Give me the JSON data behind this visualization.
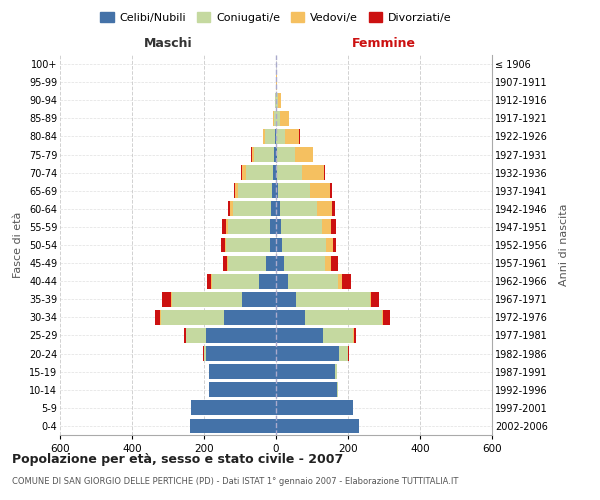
{
  "age_groups": [
    "0-4",
    "5-9",
    "10-14",
    "15-19",
    "20-24",
    "25-29",
    "30-34",
    "35-39",
    "40-44",
    "45-49",
    "50-54",
    "55-59",
    "60-64",
    "65-69",
    "70-74",
    "75-79",
    "80-84",
    "85-89",
    "90-94",
    "95-99",
    "100+"
  ],
  "birth_years": [
    "2002-2006",
    "1997-2001",
    "1992-1996",
    "1987-1991",
    "1982-1986",
    "1977-1981",
    "1972-1976",
    "1967-1971",
    "1962-1966",
    "1957-1961",
    "1952-1956",
    "1947-1951",
    "1942-1946",
    "1937-1941",
    "1932-1936",
    "1927-1931",
    "1922-1926",
    "1917-1921",
    "1912-1916",
    "1907-1911",
    "≤ 1906"
  ],
  "males": {
    "celibi": [
      240,
      235,
      185,
      185,
      195,
      195,
      145,
      95,
      48,
      28,
      18,
      18,
      14,
      10,
      8,
      5,
      2,
      0,
      0,
      0,
      0
    ],
    "coniugati": [
      0,
      0,
      0,
      2,
      5,
      55,
      175,
      195,
      130,
      105,
      120,
      115,
      105,
      95,
      75,
      55,
      28,
      6,
      3,
      1,
      0
    ],
    "vedovi": [
      0,
      0,
      0,
      0,
      0,
      1,
      1,
      2,
      3,
      3,
      5,
      5,
      8,
      10,
      12,
      8,
      5,
      3,
      1,
      0,
      0
    ],
    "divorziati": [
      0,
      0,
      0,
      0,
      2,
      5,
      15,
      25,
      12,
      10,
      10,
      12,
      5,
      3,
      2,
      2,
      0,
      0,
      0,
      0,
      0
    ]
  },
  "females": {
    "nubili": [
      230,
      215,
      170,
      165,
      175,
      130,
      80,
      55,
      32,
      22,
      18,
      14,
      10,
      5,
      3,
      2,
      0,
      0,
      0,
      0,
      0
    ],
    "coniugate": [
      0,
      0,
      2,
      5,
      25,
      85,
      215,
      205,
      140,
      115,
      120,
      115,
      105,
      90,
      70,
      50,
      25,
      12,
      5,
      1,
      0
    ],
    "vedove": [
      0,
      0,
      0,
      0,
      1,
      2,
      3,
      5,
      10,
      15,
      20,
      25,
      40,
      55,
      60,
      50,
      40,
      25,
      8,
      1,
      0
    ],
    "divorziate": [
      0,
      0,
      0,
      0,
      2,
      5,
      18,
      22,
      25,
      20,
      10,
      12,
      8,
      5,
      3,
      2,
      1,
      0,
      0,
      0,
      0
    ]
  },
  "colors": {
    "celibi": "#4472a8",
    "coniugati": "#c5d9a0",
    "vedovi": "#f5c060",
    "divorziati": "#cc1111"
  },
  "title": "Popolazione per età, sesso e stato civile - 2007",
  "subtitle": "COMUNE DI SAN GIORGIO DELLE PERTICHE (PD) - Dati ISTAT 1° gennaio 2007 - Elaborazione TUTTITALIA.IT",
  "xlabel_left": "Maschi",
  "xlabel_right": "Femmine",
  "ylabel_left": "Fasce di età",
  "ylabel_right": "Anni di nascita",
  "legend_labels": [
    "Celibi/Nubili",
    "Coniugati/e",
    "Vedovi/e",
    "Divorziati/e"
  ],
  "xlim": 600,
  "bg_color": "#ffffff",
  "grid_color": "#cccccc"
}
